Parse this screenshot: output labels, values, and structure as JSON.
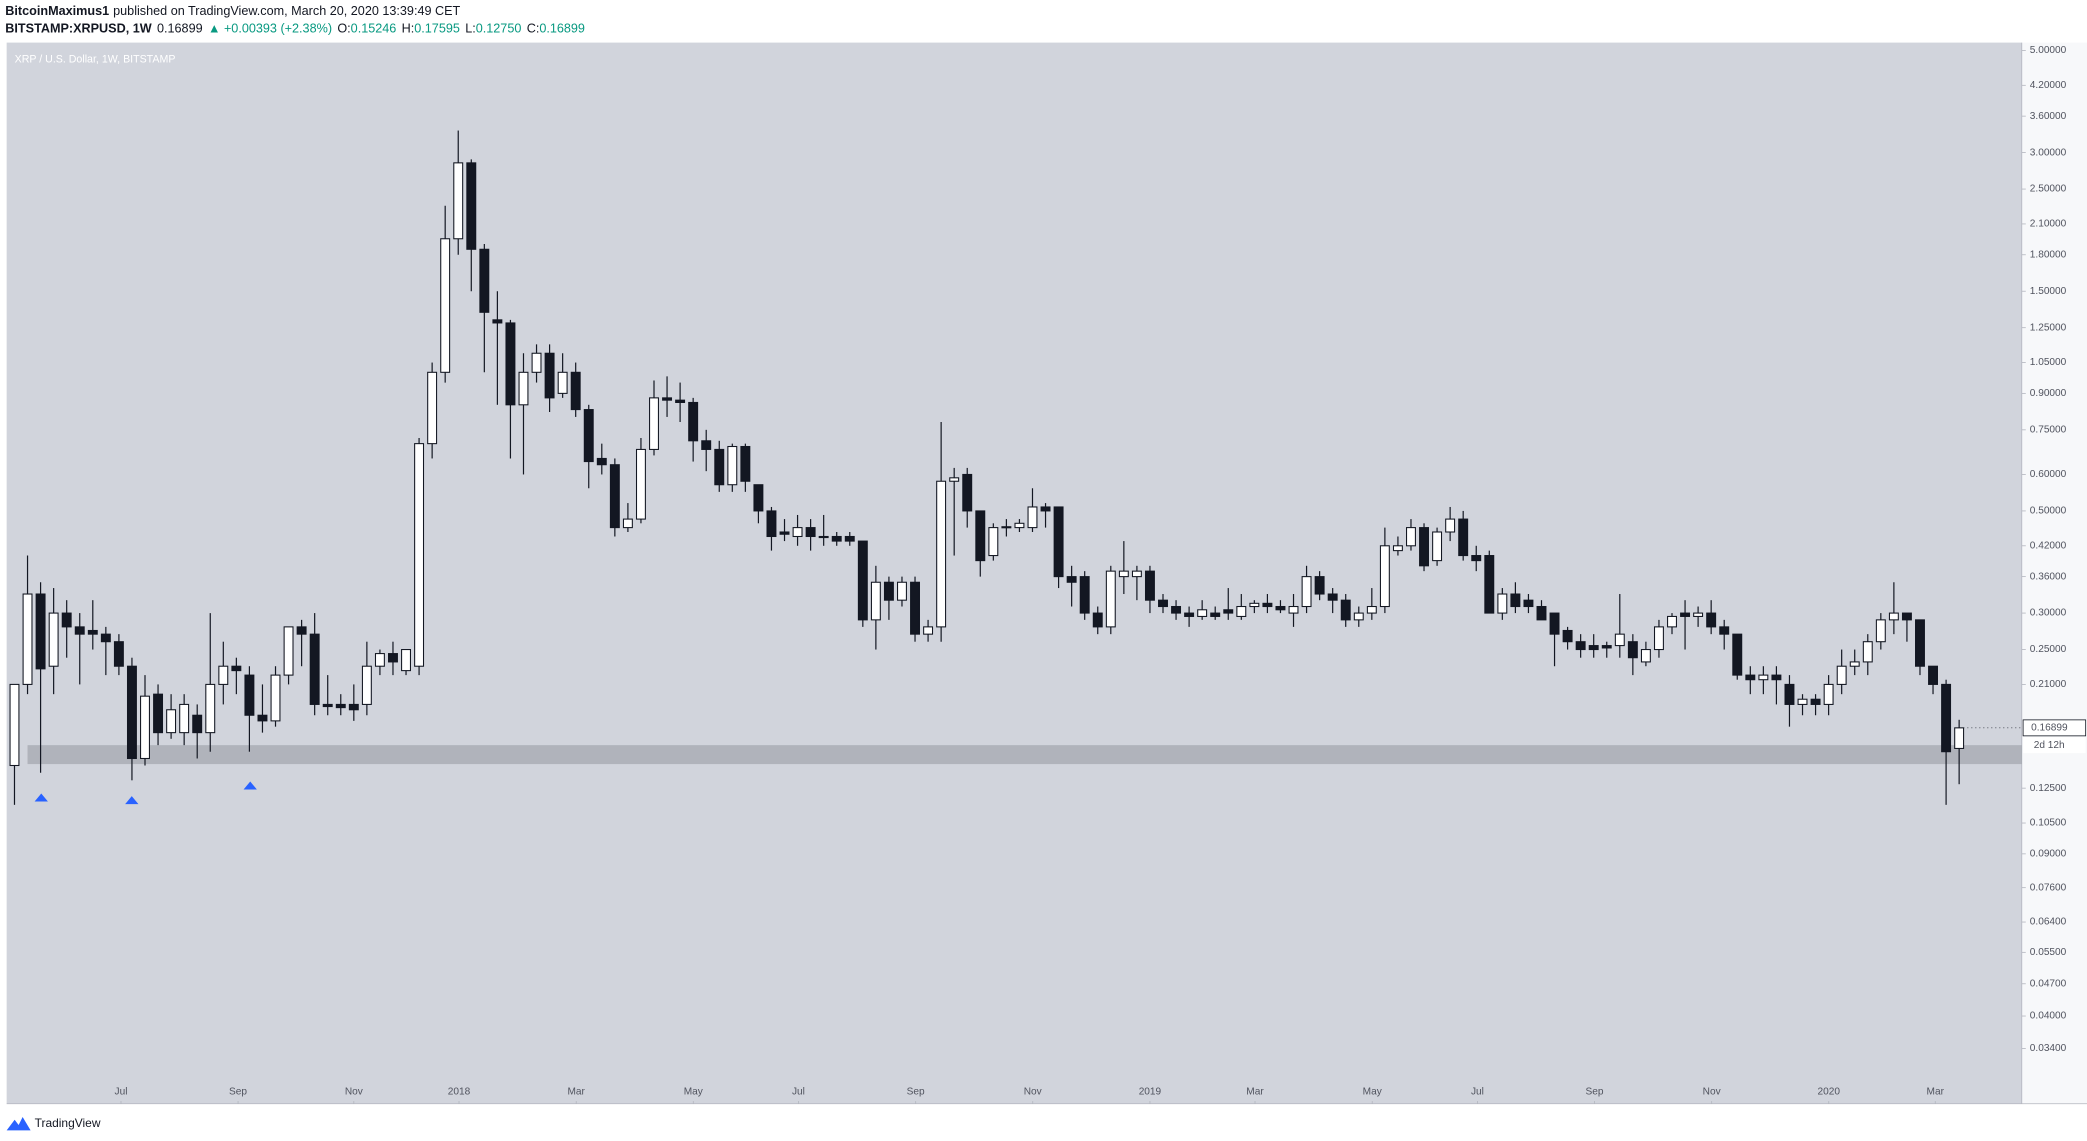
{
  "header": {
    "author": "BitcoinMaximus1",
    "published": "published on TradingView.com, March 20, 2020 13:39:49 CET",
    "symbol": "BITSTAMP:XRPUSD, 1W",
    "last": "0.16899",
    "change": "▲ +0.00393 (+2.38%)",
    "ohlc": [
      {
        "label": "O:",
        "value": "0.15246"
      },
      {
        "label": "H:",
        "value": "0.17595"
      },
      {
        "label": "L:",
        "value": "0.12750"
      },
      {
        "label": "C:",
        "value": "0.16899"
      }
    ]
  },
  "brand": "TradingView",
  "chart_data": {
    "type": "candlestick",
    "title": "XRP / U.S. Dollar, 1W, BITSTAMP",
    "log_scale": true,
    "grid": false,
    "up_color": "#ffffff",
    "down_color": "#131722",
    "wick_color": "#131722",
    "zone_color": "#9598a1",
    "xlim": [
      -0.6,
      153.8
    ],
    "xticks": [
      {
        "value": 8.16,
        "label": "Jul"
      },
      {
        "value": 17.13,
        "label": "Sep"
      },
      {
        "value": 26.0,
        "label": "Nov"
      },
      {
        "value": 34.06,
        "label": "2018"
      },
      {
        "value": 43.04,
        "label": "Mar"
      },
      {
        "value": 52.01,
        "label": "May"
      },
      {
        "value": 60.07,
        "label": "Jul"
      },
      {
        "value": 69.05,
        "label": "Sep"
      },
      {
        "value": 78.02,
        "label": "Nov"
      },
      {
        "value": 87.0,
        "label": "2019"
      },
      {
        "value": 95.05,
        "label": "Mar"
      },
      {
        "value": 104.03,
        "label": "May"
      },
      {
        "value": 112.09,
        "label": "Jul"
      },
      {
        "value": 121.06,
        "label": "Sep"
      },
      {
        "value": 130.04,
        "label": "Nov"
      },
      {
        "value": 139.01,
        "label": "2020"
      },
      {
        "value": 147.17,
        "label": "Mar"
      }
    ],
    "ylim": [
      0.0258,
      5.2
    ],
    "yticks": [
      {
        "value": 5,
        "label": "5.00000"
      },
      {
        "value": 4.2,
        "label": "4.20000"
      },
      {
        "value": 3.6,
        "label": "3.60000"
      },
      {
        "value": 3,
        "label": "3.00000"
      },
      {
        "value": 2.5,
        "label": "2.50000"
      },
      {
        "value": 2.1,
        "label": "2.10000"
      },
      {
        "value": 1.8,
        "label": "1.80000"
      },
      {
        "value": 1.5,
        "label": "1.50000"
      },
      {
        "value": 1.25,
        "label": "1.25000"
      },
      {
        "value": 1.05,
        "label": "1.05000"
      },
      {
        "value": 0.9,
        "label": "0.90000"
      },
      {
        "value": 0.75,
        "label": "0.75000"
      },
      {
        "value": 0.6,
        "label": "0.60000"
      },
      {
        "value": 0.5,
        "label": "0.50000"
      },
      {
        "value": 0.42,
        "label": "0.42000"
      },
      {
        "value": 0.36,
        "label": "0.36000"
      },
      {
        "value": 0.3,
        "label": "0.30000"
      },
      {
        "value": 0.25,
        "label": "0.25000"
      },
      {
        "value": 0.21,
        "label": "0.21000"
      },
      {
        "value": 0.125,
        "label": "0.12500"
      },
      {
        "value": 0.105,
        "label": "0.10500"
      },
      {
        "value": 0.09,
        "label": "0.09000"
      },
      {
        "value": 0.076,
        "label": "0.07600"
      },
      {
        "value": 0.064,
        "label": "0.06400"
      },
      {
        "value": 0.055,
        "label": "0.05500"
      },
      {
        "value": 0.047,
        "label": "0.04700"
      },
      {
        "value": 0.04,
        "label": "0.04000"
      },
      {
        "value": 0.034,
        "label": "0.03400"
      }
    ],
    "zone": [
      0.141,
      0.155
    ],
    "last_price_label": "0.16899",
    "countdown": "2d 12h",
    "open": [
      0.14,
      0.21,
      0.33,
      0.23,
      0.3,
      0.28,
      0.275,
      0.27,
      0.26,
      0.23,
      0.145,
      0.2,
      0.165,
      0.165,
      0.18,
      0.165,
      0.21,
      0.23,
      0.22,
      0.18,
      0.175,
      0.22,
      0.28,
      0.27,
      0.19,
      0.19,
      0.19,
      0.19,
      0.23,
      0.245,
      0.225,
      0.23,
      0.7,
      1.0,
      1.95,
      2.85,
      1.85,
      1.3,
      1.28,
      0.85,
      1.0,
      1.1,
      0.9,
      1.0,
      0.83,
      0.65,
      0.63,
      0.46,
      0.48,
      0.68,
      0.88,
      0.87,
      0.86,
      0.71,
      0.68,
      0.57,
      0.69,
      0.57,
      0.5,
      0.45,
      0.44,
      0.46,
      0.44,
      0.44,
      0.44,
      0.43,
      0.29,
      0.35,
      0.32,
      0.35,
      0.27,
      0.28,
      0.58,
      0.6,
      0.5,
      0.4,
      0.46,
      0.46,
      0.46,
      0.51,
      0.51,
      0.36,
      0.36,
      0.3,
      0.28,
      0.36,
      0.36,
      0.37,
      0.32,
      0.31,
      0.3,
      0.295,
      0.3,
      0.305,
      0.295,
      0.31,
      0.315,
      0.31,
      0.3,
      0.31,
      0.36,
      0.33,
      0.32,
      0.29,
      0.3,
      0.31,
      0.41,
      0.42,
      0.46,
      0.39,
      0.45,
      0.48,
      0.4,
      0.4,
      0.3,
      0.33,
      0.32,
      0.31,
      0.3,
      0.275,
      0.26,
      0.255,
      0.255,
      0.255,
      0.26,
      0.235,
      0.25,
      0.28,
      0.3,
      0.295,
      0.3,
      0.28,
      0.27,
      0.22,
      0.215,
      0.22,
      0.21,
      0.19,
      0.195,
      0.19,
      0.21,
      0.23,
      0.235,
      0.26,
      0.29,
      0.3,
      0.29,
      0.23,
      0.21,
      0.15246
    ],
    "high": [
      0.21,
      0.4,
      0.35,
      0.34,
      0.32,
      0.3,
      0.32,
      0.28,
      0.27,
      0.24,
      0.22,
      0.21,
      0.2,
      0.2,
      0.19,
      0.3,
      0.26,
      0.24,
      0.23,
      0.21,
      0.23,
      0.28,
      0.29,
      0.3,
      0.22,
      0.2,
      0.21,
      0.26,
      0.25,
      0.26,
      0.25,
      0.72,
      1.05,
      2.3,
      3.35,
      2.9,
      1.9,
      1.5,
      1.3,
      1.1,
      1.15,
      1.15,
      1.1,
      1.05,
      0.85,
      0.7,
      0.65,
      0.52,
      0.72,
      0.96,
      0.98,
      0.95,
      0.88,
      0.75,
      0.71,
      0.7,
      0.7,
      0.57,
      0.51,
      0.48,
      0.49,
      0.48,
      0.49,
      0.45,
      0.45,
      0.43,
      0.38,
      0.36,
      0.36,
      0.36,
      0.29,
      0.78,
      0.62,
      0.62,
      0.5,
      0.47,
      0.48,
      0.48,
      0.56,
      0.52,
      0.51,
      0.38,
      0.37,
      0.31,
      0.38,
      0.43,
      0.38,
      0.38,
      0.33,
      0.32,
      0.31,
      0.32,
      0.31,
      0.34,
      0.33,
      0.32,
      0.33,
      0.32,
      0.33,
      0.38,
      0.37,
      0.34,
      0.33,
      0.31,
      0.34,
      0.46,
      0.44,
      0.48,
      0.47,
      0.46,
      0.51,
      0.5,
      0.42,
      0.41,
      0.34,
      0.35,
      0.33,
      0.32,
      0.3,
      0.28,
      0.27,
      0.27,
      0.26,
      0.33,
      0.27,
      0.26,
      0.29,
      0.3,
      0.32,
      0.31,
      0.32,
      0.29,
      0.27,
      0.23,
      0.23,
      0.23,
      0.22,
      0.2,
      0.2,
      0.22,
      0.25,
      0.25,
      0.27,
      0.3,
      0.35,
      0.3,
      0.29,
      0.23,
      0.215,
      0.17595
    ],
    "low": [
      0.115,
      0.2,
      0.135,
      0.2,
      0.24,
      0.21,
      0.25,
      0.22,
      0.22,
      0.13,
      0.14,
      0.155,
      0.16,
      0.155,
      0.145,
      0.15,
      0.19,
      0.2,
      0.15,
      0.165,
      0.17,
      0.21,
      0.23,
      0.18,
      0.18,
      0.18,
      0.175,
      0.18,
      0.22,
      0.22,
      0.22,
      0.22,
      0.65,
      0.95,
      1.8,
      1.5,
      1.0,
      0.85,
      0.65,
      0.6,
      0.95,
      0.82,
      0.88,
      0.8,
      0.56,
      0.6,
      0.44,
      0.45,
      0.47,
      0.66,
      0.8,
      0.78,
      0.64,
      0.61,
      0.55,
      0.55,
      0.55,
      0.47,
      0.41,
      0.43,
      0.42,
      0.41,
      0.42,
      0.42,
      0.42,
      0.28,
      0.25,
      0.29,
      0.31,
      0.26,
      0.26,
      0.26,
      0.4,
      0.46,
      0.36,
      0.39,
      0.44,
      0.45,
      0.45,
      0.46,
      0.34,
      0.31,
      0.29,
      0.27,
      0.27,
      0.33,
      0.32,
      0.3,
      0.3,
      0.29,
      0.28,
      0.29,
      0.29,
      0.29,
      0.29,
      0.3,
      0.3,
      0.3,
      0.28,
      0.3,
      0.32,
      0.3,
      0.28,
      0.28,
      0.29,
      0.3,
      0.4,
      0.41,
      0.37,
      0.38,
      0.43,
      0.39,
      0.37,
      0.3,
      0.29,
      0.3,
      0.3,
      0.29,
      0.23,
      0.25,
      0.24,
      0.24,
      0.24,
      0.24,
      0.22,
      0.23,
      0.24,
      0.27,
      0.25,
      0.28,
      0.27,
      0.25,
      0.215,
      0.2,
      0.2,
      0.19,
      0.17,
      0.18,
      0.18,
      0.18,
      0.2,
      0.22,
      0.22,
      0.25,
      0.27,
      0.26,
      0.22,
      0.2,
      0.115,
      0.1275
    ],
    "close": [
      0.21,
      0.33,
      0.227,
      0.3,
      0.28,
      0.27,
      0.27,
      0.26,
      0.23,
      0.145,
      0.198,
      0.165,
      0.185,
      0.19,
      0.165,
      0.21,
      0.23,
      0.225,
      0.18,
      0.175,
      0.22,
      0.28,
      0.27,
      0.19,
      0.188,
      0.187,
      0.185,
      0.23,
      0.245,
      0.235,
      0.25,
      0.7,
      1.0,
      1.95,
      2.85,
      1.85,
      1.35,
      1.28,
      0.85,
      1.0,
      1.1,
      0.88,
      1.0,
      0.83,
      0.64,
      0.63,
      0.46,
      0.48,
      0.68,
      0.88,
      0.87,
      0.86,
      0.71,
      0.68,
      0.57,
      0.69,
      0.58,
      0.5,
      0.44,
      0.445,
      0.46,
      0.44,
      0.438,
      0.43,
      0.43,
      0.29,
      0.35,
      0.32,
      0.35,
      0.27,
      0.28,
      0.58,
      0.59,
      0.5,
      0.39,
      0.46,
      0.462,
      0.47,
      0.51,
      0.5,
      0.36,
      0.35,
      0.3,
      0.28,
      0.37,
      0.37,
      0.37,
      0.32,
      0.31,
      0.3,
      0.295,
      0.305,
      0.295,
      0.3,
      0.31,
      0.315,
      0.31,
      0.305,
      0.31,
      0.36,
      0.33,
      0.32,
      0.29,
      0.3,
      0.31,
      0.42,
      0.42,
      0.46,
      0.38,
      0.45,
      0.48,
      0.4,
      0.39,
      0.3,
      0.33,
      0.31,
      0.31,
      0.29,
      0.27,
      0.26,
      0.25,
      0.25,
      0.252,
      0.27,
      0.24,
      0.25,
      0.28,
      0.295,
      0.295,
      0.3,
      0.28,
      0.27,
      0.22,
      0.215,
      0.22,
      0.215,
      0.19,
      0.195,
      0.19,
      0.21,
      0.23,
      0.235,
      0.26,
      0.29,
      0.3,
      0.29,
      0.23,
      0.21,
      0.15,
      0.16899
    ]
  }
}
